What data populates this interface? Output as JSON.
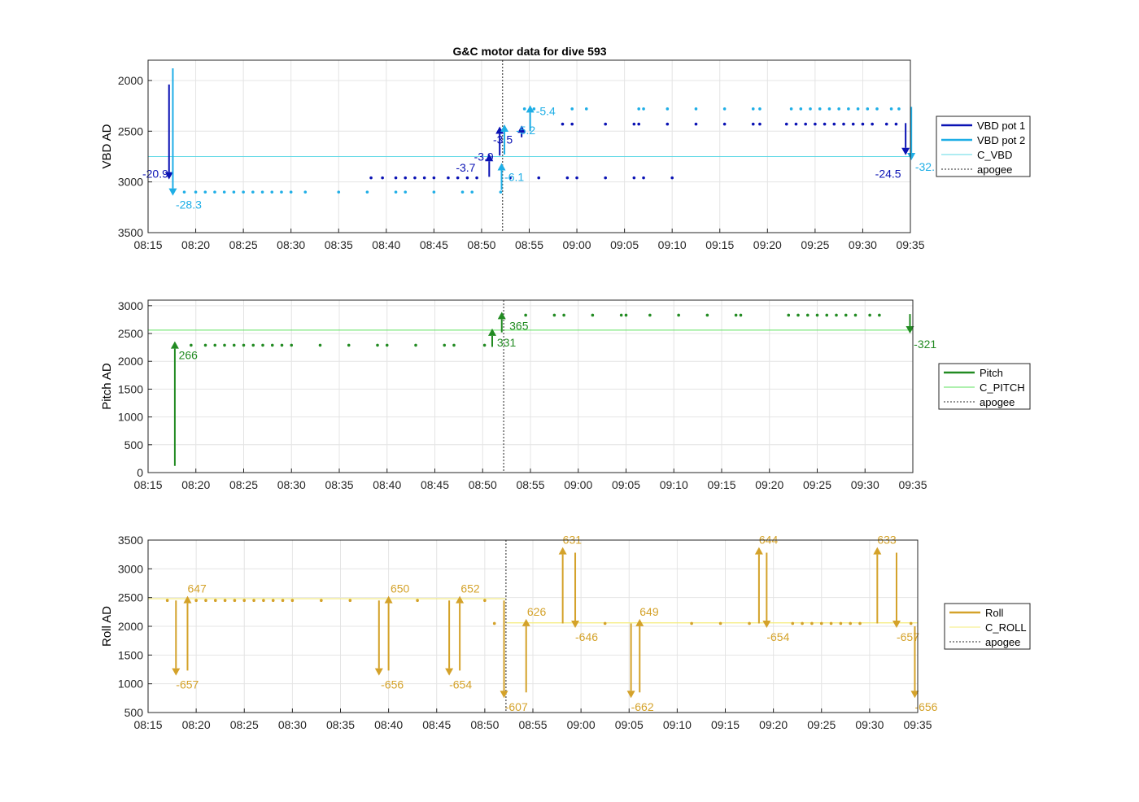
{
  "title": "G&C motor data for dive 593",
  "x_ticks": [
    "08:15",
    "08:20",
    "08:25",
    "08:30",
    "08:35",
    "08:40",
    "08:45",
    "08:50",
    "08:55",
    "09:00",
    "09:05",
    "09:10",
    "09:15",
    "09:20",
    "09:25",
    "09:30",
    "09:35"
  ],
  "colors": {
    "vbd1": "#0a12b4",
    "vbd2": "#1eaee6",
    "c_vbd": "#5fd8e6",
    "pitch": "#228b22",
    "c_pitch": "#5ee05e",
    "roll": "#d4a22a",
    "c_roll": "#f4ec7a",
    "apogee": "#555555",
    "grid": "#e4e4e4",
    "axis": "#262626"
  },
  "chart_data": [
    {
      "type": "scatter",
      "ylabel": "VBD AD",
      "y_reversed": true,
      "ylim": [
        1800,
        3500
      ],
      "yticks": [
        2000,
        2500,
        3000,
        3500
      ],
      "xlim_min": [
        495,
        575
      ],
      "apogee_min": 532.2,
      "legend": [
        "VBD pot 1",
        "VBD pot 2",
        "C_VBD",
        "apogee"
      ],
      "c_line": 2750,
      "series": [
        {
          "name": "VBD pot 1",
          "points": [
            [
              518.4,
              2960
            ],
            [
              519.6,
              2960
            ],
            [
              521,
              2960
            ],
            [
              522,
              2960
            ],
            [
              523,
              2960
            ],
            [
              524,
              2960
            ],
            [
              525,
              2960
            ],
            [
              526.5,
              2960
            ],
            [
              527.5,
              2960
            ],
            [
              528.5,
              2960
            ],
            [
              529.5,
              2960
            ],
            [
              533,
              2960
            ],
            [
              536,
              2960
            ],
            [
              539,
              2960
            ],
            [
              540,
              2960
            ],
            [
              543,
              2960
            ],
            [
              546,
              2960
            ],
            [
              547,
              2960
            ],
            [
              550,
              2960
            ],
            [
              538.5,
              2430
            ],
            [
              539.5,
              2430
            ],
            [
              543,
              2430
            ],
            [
              546,
              2430
            ],
            [
              546.5,
              2430
            ],
            [
              549.5,
              2430
            ],
            [
              552.5,
              2430
            ],
            [
              555.5,
              2430
            ],
            [
              558.5,
              2430
            ],
            [
              559.2,
              2430
            ],
            [
              562,
              2430
            ],
            [
              563,
              2430
            ],
            [
              564,
              2430
            ],
            [
              565,
              2430
            ],
            [
              566,
              2430
            ],
            [
              567,
              2430
            ],
            [
              568,
              2430
            ],
            [
              569,
              2430
            ],
            [
              570,
              2430
            ],
            [
              571,
              2430
            ],
            [
              572.5,
              2430
            ],
            [
              573.5,
              2430
            ]
          ],
          "arrows": [
            {
              "t": 497.2,
              "from": 2040,
              "to": 2960,
              "label": "-20.9",
              "label_dt": -2.8,
              "label_dy": 0
            },
            {
              "t": 530.8,
              "from": 2950,
              "to": 2740,
              "label": "-3.7",
              "label_dt": -3.5,
              "label_dy": 20
            },
            {
              "t": 531.9,
              "from": 2740,
              "to": 2470,
              "label": "-3.9",
              "label_dt": -2.7,
              "label_dy": 40
            },
            {
              "t": 534.2,
              "from": 2560,
              "to": 2460,
              "label": "-3.5",
              "label_dt": -3.0,
              "label_dy": 20
            },
            {
              "t": 574.5,
              "from": 2420,
              "to": 2720,
              "label": "-24.5",
              "label_dt": -3.2,
              "label_dy": 30
            }
          ]
        },
        {
          "name": "VBD pot 2",
          "points": [
            [
              498.8,
              3100
            ],
            [
              500,
              3100
            ],
            [
              501,
              3100
            ],
            [
              502,
              3100
            ],
            [
              503,
              3100
            ],
            [
              504,
              3100
            ],
            [
              505,
              3100
            ],
            [
              506,
              3100
            ],
            [
              507,
              3100
            ],
            [
              508,
              3100
            ],
            [
              509,
              3100
            ],
            [
              510,
              3100
            ],
            [
              511.5,
              3100
            ],
            [
              515,
              3100
            ],
            [
              518,
              3100
            ],
            [
              521,
              3100
            ],
            [
              522,
              3100
            ],
            [
              525,
              3100
            ],
            [
              528,
              3100
            ],
            [
              529,
              3100
            ],
            [
              532,
              3100
            ],
            [
              534.5,
              2280
            ],
            [
              535.5,
              2280
            ],
            [
              539.5,
              2280
            ],
            [
              541,
              2280
            ],
            [
              546.5,
              2280
            ],
            [
              547,
              2280
            ],
            [
              549.5,
              2280
            ],
            [
              552.5,
              2280
            ],
            [
              555.5,
              2280
            ],
            [
              558.5,
              2280
            ],
            [
              559.2,
              2280
            ],
            [
              562.5,
              2280
            ],
            [
              563.5,
              2280
            ],
            [
              564.5,
              2280
            ],
            [
              565.5,
              2280
            ],
            [
              566.5,
              2280
            ],
            [
              567.5,
              2280
            ],
            [
              568.5,
              2280
            ],
            [
              569.5,
              2280
            ],
            [
              570.5,
              2280
            ],
            [
              571.5,
              2280
            ],
            [
              573,
              2280
            ],
            [
              573.8,
              2280
            ]
          ],
          "arrows": [
            {
              "t": 497.6,
              "from": 1880,
              "to": 3120,
              "label": "-28.3",
              "label_dt": 0.3,
              "label_dy": 18
            },
            {
              "t": 532.1,
              "from": 3080,
              "to": 2830,
              "label": "-6.1",
              "label_dt": 0.3,
              "label_dy": 20
            },
            {
              "t": 532.4,
              "from": 2730,
              "to": 2450,
              "label": "-5.2",
              "label_dt": 1.2,
              "label_dy": 10
            },
            {
              "t": 535.1,
              "from": 2500,
              "to": 2260,
              "label": "-5.4",
              "label_dt": 0.6,
              "label_dy": 10
            },
            {
              "t": 575.1,
              "from": 2260,
              "to": 2770,
              "label": "-32.",
              "label_dt": 0.4,
              "label_dy": 15
            }
          ]
        }
      ]
    },
    {
      "type": "scatter",
      "ylabel": "Pitch AD",
      "y_reversed": false,
      "ylim": [
        0,
        3100
      ],
      "yticks": [
        0,
        500,
        1000,
        1500,
        2000,
        2500,
        3000
      ],
      "xlim_min": [
        495,
        575
      ],
      "apogee_min": 532.2,
      "legend": [
        "Pitch",
        "C_PITCH",
        "apogee"
      ],
      "c_line": 2560,
      "series": [
        {
          "name": "Pitch",
          "points": [
            [
              499.5,
              2290
            ],
            [
              501,
              2290
            ],
            [
              502,
              2290
            ],
            [
              503,
              2290
            ],
            [
              504,
              2290
            ],
            [
              505,
              2290
            ],
            [
              506,
              2290
            ],
            [
              507,
              2290
            ],
            [
              508,
              2290
            ],
            [
              509,
              2290
            ],
            [
              510,
              2290
            ],
            [
              513,
              2290
            ],
            [
              516,
              2290
            ],
            [
              519,
              2290
            ],
            [
              520,
              2290
            ],
            [
              523,
              2290
            ],
            [
              526,
              2290
            ],
            [
              527,
              2290
            ],
            [
              530.2,
              2290
            ],
            [
              534.5,
              2830
            ],
            [
              537.5,
              2830
            ],
            [
              538.5,
              2830
            ],
            [
              541.5,
              2830
            ],
            [
              544.5,
              2830
            ],
            [
              545,
              2830
            ],
            [
              547.5,
              2830
            ],
            [
              550.5,
              2830
            ],
            [
              553.5,
              2830
            ],
            [
              556.5,
              2830
            ],
            [
              557,
              2830
            ],
            [
              562,
              2830
            ],
            [
              563,
              2830
            ],
            [
              564,
              2830
            ],
            [
              565,
              2830
            ],
            [
              566,
              2830
            ],
            [
              567,
              2830
            ],
            [
              568,
              2830
            ],
            [
              569,
              2830
            ],
            [
              570.5,
              2830
            ],
            [
              571.5,
              2830
            ]
          ],
          "arrows": [
            {
              "t": 497.8,
              "from": 120,
              "to": 2330,
              "label": "266",
              "label_dt": 0.4,
              "label_dy": 20
            },
            {
              "t": 531.0,
              "from": 2260,
              "to": 2560,
              "label": "331",
              "label_dt": 0.5,
              "label_dy": 20
            },
            {
              "t": 532.0,
              "from": 2520,
              "to": 2860,
              "label": "365",
              "label_dt": 0.8,
              "label_dy": 20
            },
            {
              "t": 574.7,
              "from": 2850,
              "to": 2530,
              "label": "-321",
              "label_dt": 0.4,
              "label_dy": 20
            }
          ]
        }
      ]
    },
    {
      "type": "scatter",
      "ylabel": "Roll AD",
      "y_reversed": false,
      "ylim": [
        500,
        3500
      ],
      "yticks": [
        500,
        1000,
        1500,
        2000,
        2500,
        3000,
        3500
      ],
      "xlim_min": [
        495,
        575
      ],
      "apogee_min": 532.2,
      "legend": [
        "Roll",
        "C_ROLL",
        "apogee"
      ],
      "c_line_segments": [
        [
          495,
          532.2,
          2480
        ],
        [
          532.2,
          575,
          2060
        ]
      ],
      "series": [
        {
          "name": "Roll",
          "points": [
            [
              497,
              2450
            ],
            [
              500,
              2450
            ],
            [
              501,
              2450
            ],
            [
              502,
              2450
            ],
            [
              503,
              2450
            ],
            [
              504,
              2450
            ],
            [
              505,
              2450
            ],
            [
              506,
              2450
            ],
            [
              507,
              2450
            ],
            [
              508,
              2450
            ],
            [
              509,
              2450
            ],
            [
              510,
              2450
            ],
            [
              513,
              2450
            ],
            [
              516,
              2450
            ],
            [
              523,
              2450
            ],
            [
              530,
              2450
            ],
            [
              531,
              2050
            ],
            [
              542.5,
              2050
            ],
            [
              551.5,
              2050
            ],
            [
              554.5,
              2050
            ],
            [
              557.5,
              2050
            ],
            [
              562,
              2050
            ],
            [
              563,
              2050
            ],
            [
              564,
              2050
            ],
            [
              565,
              2050
            ],
            [
              566,
              2050
            ],
            [
              567,
              2050
            ],
            [
              568,
              2050
            ],
            [
              569,
              2050
            ],
            [
              574.3,
              2050
            ]
          ],
          "arrows": [
            {
              "t": 497.9,
              "from": 2450,
              "to": 1170,
              "label": "-657",
              "label_dt": 0,
              "label_dy": 18
            },
            {
              "t": 499.1,
              "from": 1230,
              "to": 2500,
              "label": "647",
              "label_dt": 0,
              "label_dy": -6
            },
            {
              "t": 519.0,
              "from": 2450,
              "to": 1170,
              "label": "-656",
              "label_dt": 0.2,
              "label_dy": 18
            },
            {
              "t": 520.0,
              "from": 1230,
              "to": 2500,
              "label": "650",
              "label_dt": 0.2,
              "label_dy": -6
            },
            {
              "t": 526.3,
              "from": 2450,
              "to": 1170,
              "label": "-654",
              "label_dt": 0,
              "label_dy": 18
            },
            {
              "t": 527.4,
              "from": 1230,
              "to": 2500,
              "label": "652",
              "label_dt": 0.1,
              "label_dy": -6
            },
            {
              "t": 532.0,
              "from": 2450,
              "to": 780,
              "label": "-607",
              "label_dt": 0.1,
              "label_dy": 18
            },
            {
              "t": 534.3,
              "from": 850,
              "to": 2100,
              "label": "626",
              "label_dt": 0.1,
              "label_dy": -6
            },
            {
              "t": 538.1,
              "from": 2050,
              "to": 3350,
              "label": "631",
              "label_dt": 0,
              "label_dy": -6
            },
            {
              "t": 539.4,
              "from": 3280,
              "to": 2000,
              "label": "-646",
              "label_dt": 0,
              "label_dy": 18
            },
            {
              "t": 545.2,
              "from": 2050,
              "to": 780,
              "label": "-662",
              "label_dt": 0,
              "label_dy": 18
            },
            {
              "t": 546.1,
              "from": 850,
              "to": 2100,
              "label": "649",
              "label_dt": 0,
              "label_dy": -6
            },
            {
              "t": 558.5,
              "from": 2050,
              "to": 3350,
              "label": "644",
              "label_dt": 0,
              "label_dy": -6
            },
            {
              "t": 559.3,
              "from": 3280,
              "to": 2000,
              "label": "-654",
              "label_dt": 0,
              "label_dy": 18
            },
            {
              "t": 570.8,
              "from": 2050,
              "to": 3350,
              "label": "633",
              "label_dt": 0,
              "label_dy": -6
            },
            {
              "t": 572.8,
              "from": 3280,
              "to": 2000,
              "label": "-657",
              "label_dt": 0,
              "label_dy": 18
            },
            {
              "t": 574.7,
              "from": 2000,
              "to": 780,
              "label": "-656",
              "label_dt": 0,
              "label_dy": 18
            }
          ]
        }
      ]
    }
  ]
}
